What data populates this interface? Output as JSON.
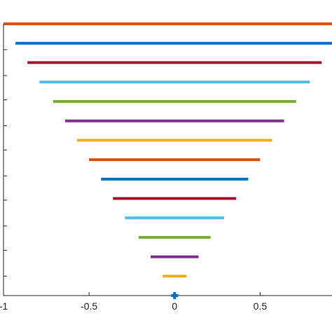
{
  "chart_data": {
    "type": "line",
    "title": "",
    "xlabel": "",
    "ylabel": "",
    "xlim": [
      -1,
      0.92
    ],
    "ylim": [
      0,
      16.8
    ],
    "grid": false,
    "legend": "none",
    "x_ticks": [
      {
        "value": -1,
        "label": "-1"
      },
      {
        "value": -0.5,
        "label": "-0.5"
      },
      {
        "value": 0,
        "label": "0"
      },
      {
        "value": 0.5,
        "label": "0.5"
      }
    ],
    "y_ticks": [
      1.2,
      2.8,
      4.3,
      5.9,
      7.4,
      9.0,
      10.5,
      12.1,
      13.6,
      15.2
    ],
    "colors": [
      "#EDB120",
      "#7E2F8E",
      "#77AC30",
      "#4DBEEE",
      "#A2142F",
      "#0072BD",
      "#D95319"
    ],
    "series": [
      {
        "x": [
          -0.07,
          0.07
        ],
        "y": [
          1.2,
          1.2
        ],
        "color": "#EDB120"
      },
      {
        "x": [
          -0.14,
          0.14
        ],
        "y": [
          2.4,
          2.4
        ],
        "color": "#7E2F8E"
      },
      {
        "x": [
          -0.21,
          0.21
        ],
        "y": [
          3.6,
          3.6
        ],
        "color": "#77AC30"
      },
      {
        "x": [
          -0.29,
          0.29
        ],
        "y": [
          4.8,
          4.8
        ],
        "color": "#4DBEEE"
      },
      {
        "x": [
          -0.36,
          0.36
        ],
        "y": [
          6.0,
          6.0
        ],
        "color": "#A2142F"
      },
      {
        "x": [
          -0.43,
          0.43
        ],
        "y": [
          7.2,
          7.2
        ],
        "color": "#0072BD"
      },
      {
        "x": [
          -0.5,
          0.5
        ],
        "y": [
          8.4,
          8.4
        ],
        "color": "#D95319"
      },
      {
        "x": [
          -0.57,
          0.57
        ],
        "y": [
          9.6,
          9.6
        ],
        "color": "#EDB120"
      },
      {
        "x": [
          -0.64,
          0.64
        ],
        "y": [
          10.8,
          10.8
        ],
        "color": "#7E2F8E"
      },
      {
        "x": [
          -0.71,
          0.71
        ],
        "y": [
          12.0,
          12.0
        ],
        "color": "#77AC30"
      },
      {
        "x": [
          -0.79,
          0.79
        ],
        "y": [
          13.2,
          13.2
        ],
        "color": "#4DBEEE"
      },
      {
        "x": [
          -0.86,
          0.86
        ],
        "y": [
          14.4,
          14.4
        ],
        "color": "#A2142F"
      },
      {
        "x": [
          -0.93,
          0.93
        ],
        "y": [
          15.6,
          15.6
        ],
        "color": "#0072BD"
      },
      {
        "x": [
          -1.0,
          1.0
        ],
        "y": [
          16.8,
          16.8
        ],
        "color": "#D95319"
      }
    ],
    "marker": {
      "x": 0,
      "y": 0,
      "symbol": "plus",
      "color": "#0072BD"
    }
  }
}
